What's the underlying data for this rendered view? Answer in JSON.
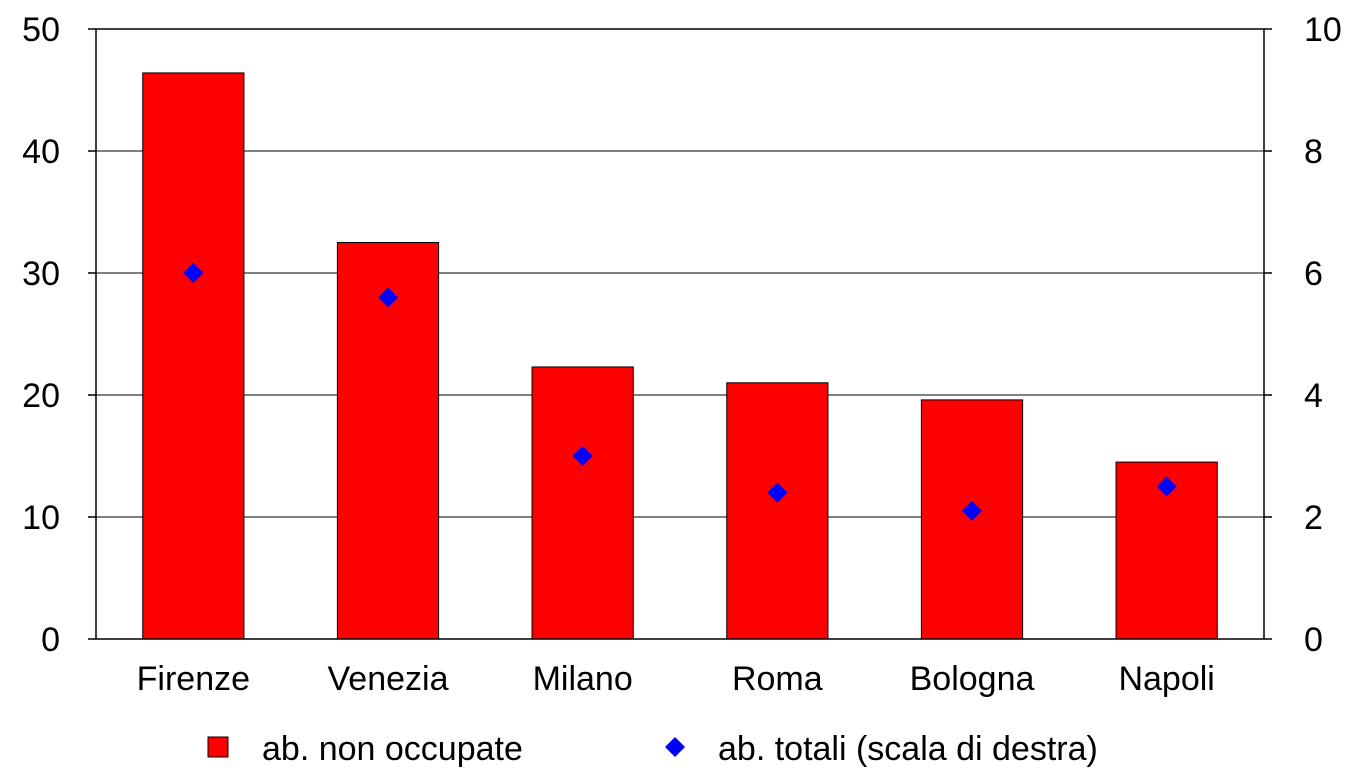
{
  "chart_data": {
    "type": "bar",
    "title": "",
    "categories": [
      "Firenze",
      "Venezia",
      "Milano",
      "Roma",
      "Bologna",
      "Napoli"
    ],
    "series": [
      {
        "name": "ab. non occupate",
        "type": "bar",
        "axis": "left",
        "color": "#ff0000",
        "values": [
          46.4,
          32.5,
          22.3,
          21.0,
          19.6,
          14.5
        ]
      },
      {
        "name": "ab. totali (scala di destra)",
        "type": "scatter",
        "marker": "diamond",
        "axis": "right",
        "color": "#0000ff",
        "values": [
          6.0,
          5.6,
          3.0,
          2.4,
          2.1,
          2.5
        ]
      }
    ],
    "y_left": {
      "ylim": [
        0,
        50
      ],
      "ticks": [
        0,
        10,
        20,
        30,
        40,
        50
      ]
    },
    "y_right": {
      "ylim": [
        0,
        10
      ],
      "ticks": [
        0,
        2,
        4,
        6,
        8,
        10
      ]
    },
    "grid": true,
    "legend_position": "bottom"
  }
}
